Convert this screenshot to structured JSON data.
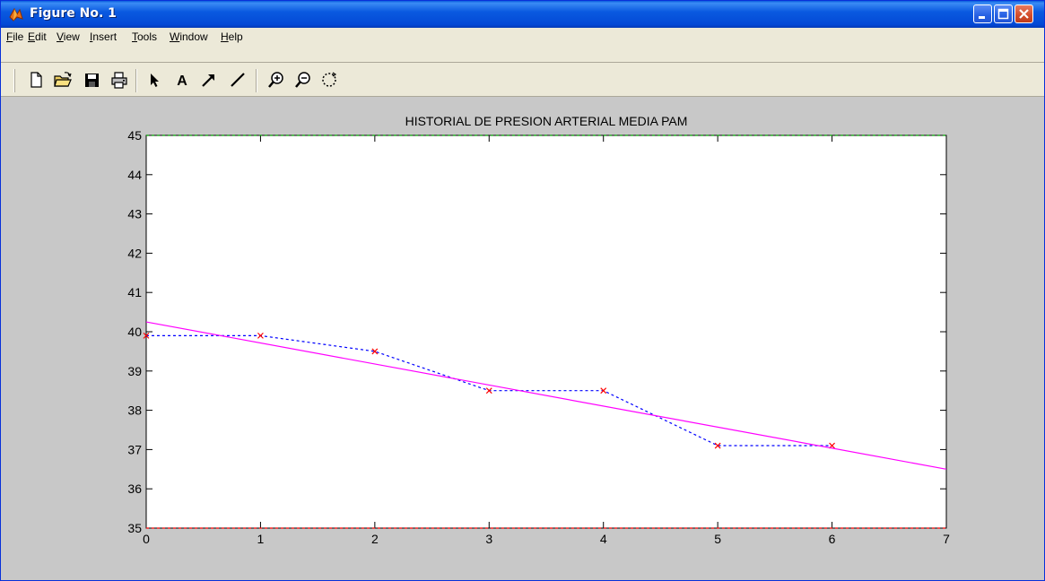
{
  "window": {
    "title": "Figure No. 1"
  },
  "menu": [
    "File",
    "Edit",
    "View",
    "Insert",
    "Tools",
    "Window",
    "Help"
  ],
  "toolbar": [
    "new-figure",
    "open-file",
    "save",
    "print",
    "edit-plot-arrow",
    "insert-text",
    "insert-arrow",
    "insert-line",
    "zoom-in",
    "zoom-out",
    "rotate-3d"
  ],
  "chart_data": {
    "type": "line",
    "title": "HISTORIAL DE PRESION ARTERIAL MEDIA PAM",
    "xlabel": "",
    "ylabel": "",
    "xlim": [
      0,
      7
    ],
    "ylim": [
      35,
      45
    ],
    "xticks": [
      0,
      1,
      2,
      3,
      4,
      5,
      6,
      7
    ],
    "yticks": [
      35,
      36,
      37,
      38,
      39,
      40,
      41,
      42,
      43,
      44,
      45
    ],
    "grid": false,
    "series": [
      {
        "style": "dashed",
        "color": "#0000ff",
        "marker": "x",
        "marker_color": "#ff0000",
        "x": [
          0,
          1,
          2,
          3,
          4,
          5,
          6
        ],
        "y": [
          39.9,
          39.9,
          39.5,
          38.5,
          38.5,
          37.1,
          37.1
        ]
      },
      {
        "style": "solid",
        "color": "#ff00ff",
        "x": [
          0,
          7
        ],
        "y": [
          40.25,
          36.5
        ]
      },
      {
        "style": "dashed",
        "color": "#00a000",
        "x": [
          0,
          7
        ],
        "y": [
          45,
          45
        ]
      },
      {
        "style": "dashed",
        "color": "#ff0000",
        "x": [
          0,
          7
        ],
        "y": [
          35,
          35
        ]
      }
    ]
  }
}
